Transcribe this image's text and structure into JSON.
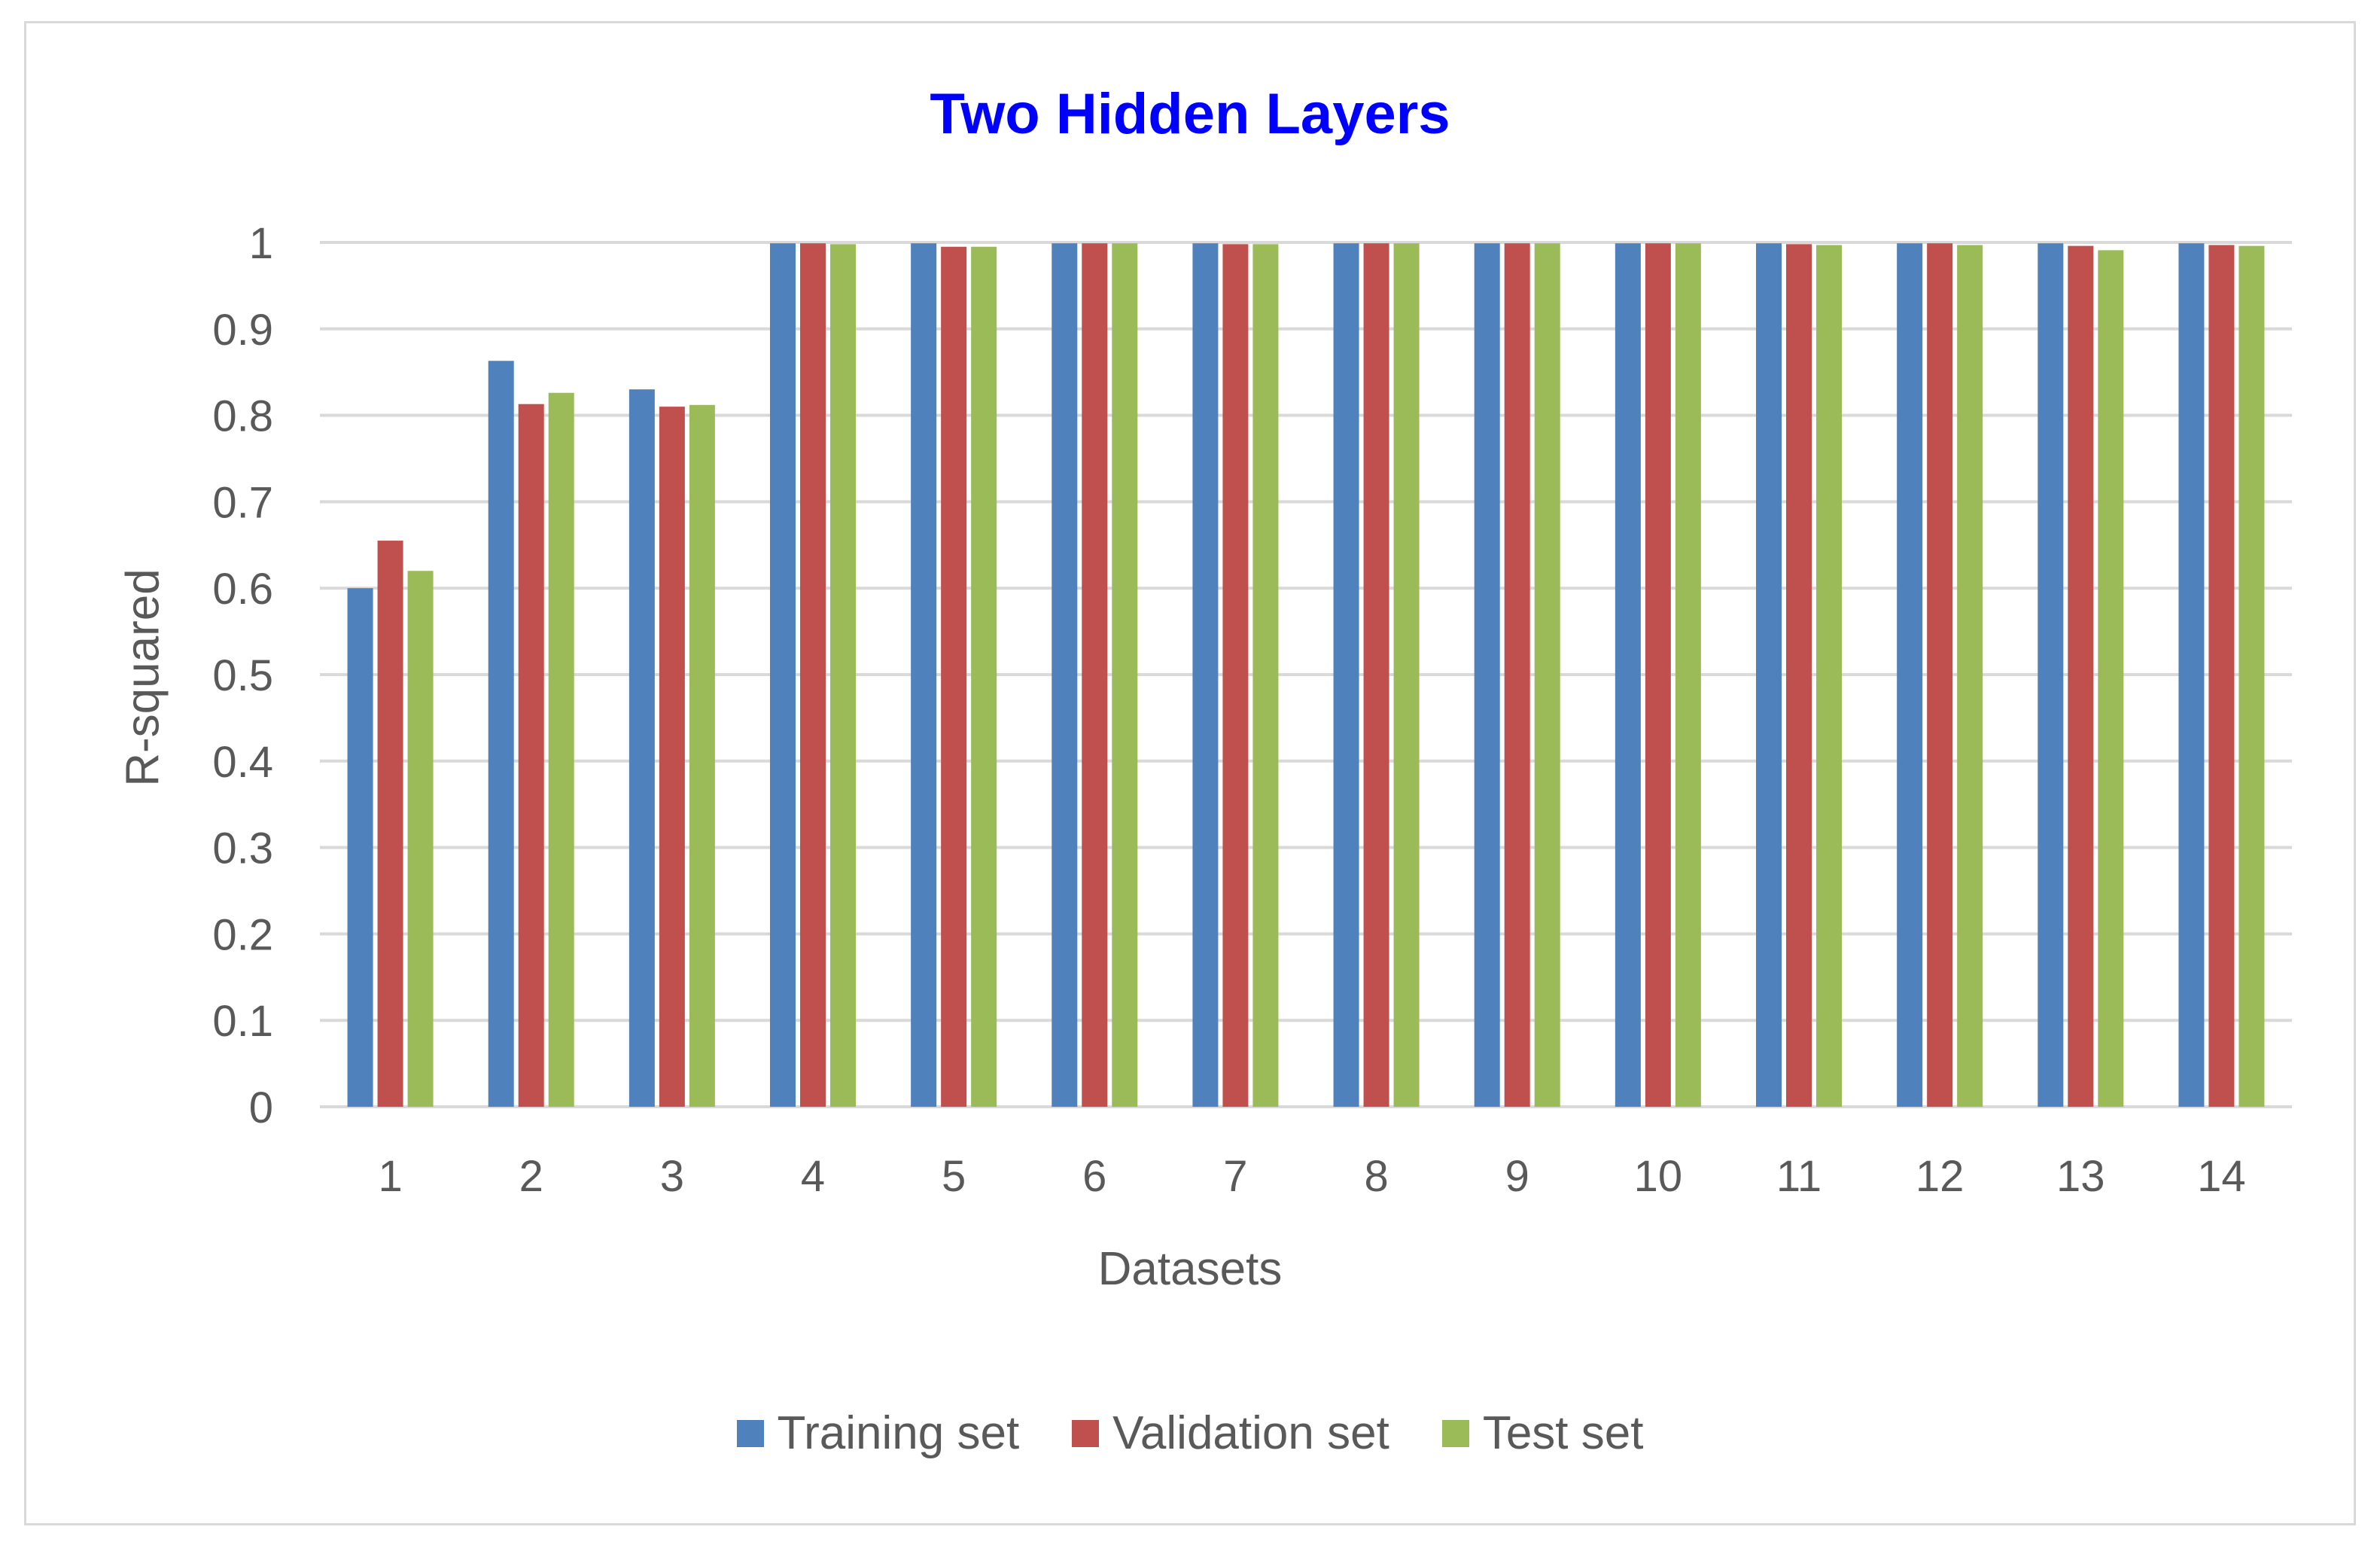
{
  "chart_data": {
    "type": "bar",
    "title": "Two Hidden Layers",
    "xlabel": "Datasets",
    "ylabel": "R-squared",
    "ylim": [
      0,
      1
    ],
    "yticks": [
      "0",
      "0.1",
      "0.2",
      "0.3",
      "0.4",
      "0.5",
      "0.6",
      "0.7",
      "0.8",
      "0.9",
      "1"
    ],
    "grid": true,
    "legend_position": "bottom",
    "categories": [
      "1",
      "2",
      "3",
      "4",
      "5",
      "6",
      "7",
      "8",
      "9",
      "10",
      "11",
      "12",
      "13",
      "14"
    ],
    "series": [
      {
        "name": "Training set",
        "color": "#4f81bd",
        "values": [
          0.6,
          0.863,
          0.83,
          0.999,
          0.999,
          0.999,
          0.999,
          0.999,
          0.999,
          0.999,
          0.999,
          0.999,
          0.999,
          0.999
        ]
      },
      {
        "name": "Validation set",
        "color": "#c0504d",
        "values": [
          0.655,
          0.813,
          0.81,
          0.999,
          0.995,
          0.999,
          0.998,
          0.999,
          0.999,
          0.999,
          0.998,
          0.999,
          0.996,
          0.997
        ]
      },
      {
        "name": "Test set",
        "color": "#9bbb59",
        "values": [
          0.62,
          0.826,
          0.812,
          0.998,
          0.995,
          0.999,
          0.998,
          0.999,
          0.999,
          0.999,
          0.997,
          0.997,
          0.991,
          0.996
        ]
      }
    ]
  }
}
